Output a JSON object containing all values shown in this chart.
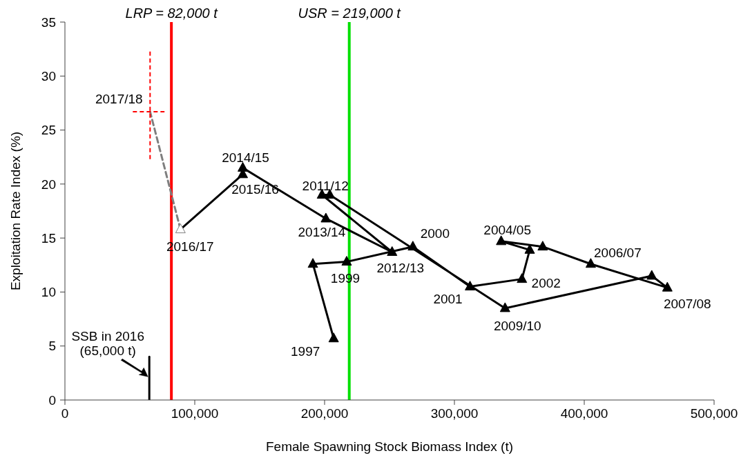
{
  "chart_data": {
    "type": "line",
    "xlabel": "Female Spawning Stock Biomass Index (t)",
    "ylabel": "Exploitation Rate Index (%)",
    "xlim": [
      0,
      500000
    ],
    "ylim": [
      0,
      35
    ],
    "xticks": [
      0,
      {
        "value": 100000,
        "label": "100,000"
      },
      {
        "value": 200000,
        "label": "200,000"
      },
      {
        "value": 300000,
        "label": "300,000"
      },
      {
        "value": 400000,
        "label": "400,000"
      },
      {
        "value": 500000,
        "label": "500,000"
      }
    ],
    "yticks": [
      0,
      5,
      10,
      15,
      20,
      25,
      30,
      35
    ],
    "line_style": "solid",
    "series": [
      {
        "color": "#000000",
        "marker": "triangle",
        "x": [
          207000,
          191000,
          217000,
          268000,
          312000,
          352000,
          358000,
          336000,
          368000,
          405000,
          464000,
          452000,
          339000,
          204000,
          198000,
          252000,
          201000,
          137000,
          137000,
          89000
        ],
        "values": [
          5.7,
          12.6,
          12.8,
          14.2,
          10.5,
          11.2,
          13.9,
          14.7,
          14.2,
          12.6,
          10.4,
          11.5,
          8.5,
          19.0,
          19.0,
          13.7,
          16.8,
          21.5,
          20.9,
          15.8
        ],
        "colors": [
          "#000000",
          "#000000",
          "#000000",
          "#000000",
          "#000000",
          "#000000",
          "#000000",
          "#000000",
          "#000000",
          "#000000",
          "#000000",
          "#000000",
          "#000000",
          "#000000",
          "#000000",
          "#000000",
          "#000000",
          "#000000",
          "#000000",
          "#ffffff"
        ]
      },
      {
        "color": "#7f7f7f",
        "marker": "none",
        "line_style": "dashed",
        "x": [
          89000,
          65600
        ],
        "values": [
          15.8,
          26.7
        ],
        "errors": [
          null,
          [
            22.3,
            32.3
          ]
        ],
        "xerrors": [
          null,
          [
            52300,
            76700
          ]
        ]
      },
      {
        "color": "#000000",
        "marker": "none",
        "x": [
          65000,
          65000
        ],
        "values": [
          0,
          4
        ]
      }
    ],
    "ref_lines": [
      {
        "axis": "x",
        "value": 82000,
        "label": "LRP = 82,000 t",
        "color": "#ff0000"
      },
      {
        "axis": "x",
        "value": 219000,
        "label": "USR = 219,000 t",
        "color": "#00e000"
      }
    ],
    "annotations": [
      {
        "text": "1997",
        "x": 207000,
        "y": 5.7
      },
      {
        "text": "1999",
        "x": 217000,
        "y": 12.8
      },
      {
        "text": "2000",
        "x": 268000,
        "y": 14.2
      },
      {
        "text": "2001",
        "x": 312000,
        "y": 10.5
      },
      {
        "text": "2002",
        "x": 352000,
        "y": 11.2
      },
      {
        "text": "2004/05",
        "x": 336000,
        "y": 14.7
      },
      {
        "text": "2006/07",
        "x": 405000,
        "y": 12.6
      },
      {
        "text": "2007/08",
        "x": 464000,
        "y": 10.4
      },
      {
        "text": "2009/10",
        "x": 339000,
        "y": 8.5
      },
      {
        "text": "2011/12",
        "x": 198000,
        "y": 19.0
      },
      {
        "text": "2012/13",
        "x": 252000,
        "y": 13.7
      },
      {
        "text": "2013/14",
        "x": 201000,
        "y": 16.8
      },
      {
        "text": "2014/15",
        "x": 137000,
        "y": 21.5
      },
      {
        "text": "2015/16",
        "x": 137000,
        "y": 20.9
      },
      {
        "text": "2016/17",
        "x": 89000,
        "y": 15.8
      },
      {
        "text": "2017/18",
        "x": 65600,
        "y": 26.7
      },
      {
        "text": "SSB in 2016\n(65,000 t)",
        "x": 65000,
        "y": 4
      }
    ]
  }
}
